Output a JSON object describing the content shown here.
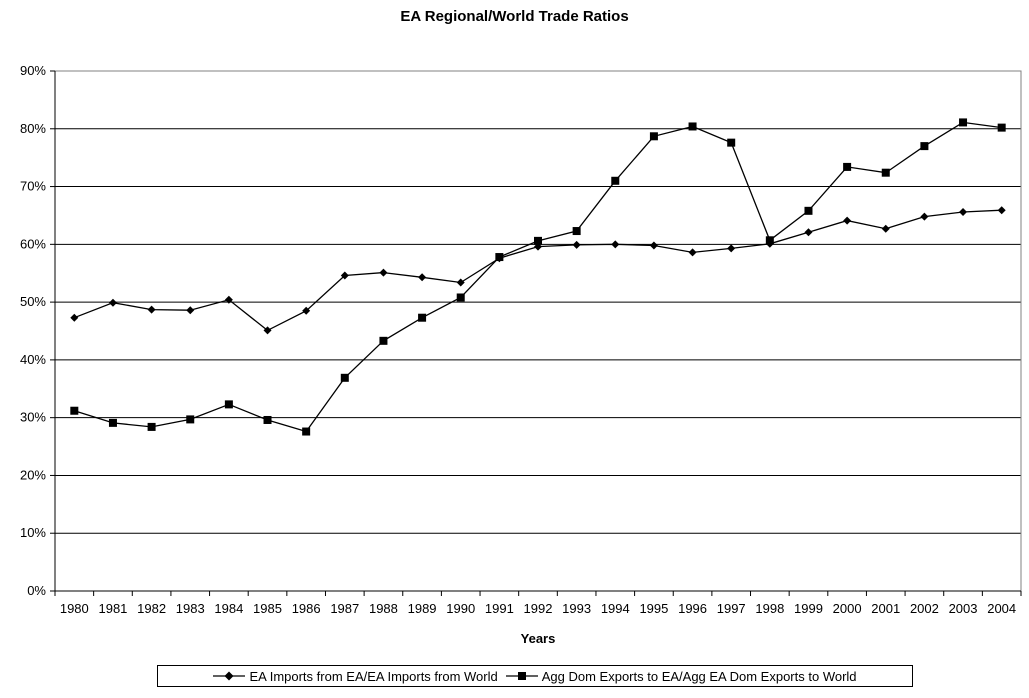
{
  "chart_data": {
    "type": "line",
    "title": "EA Regional/World Trade Ratios",
    "xlabel": "Years",
    "ylabel": "",
    "ylim": [
      0,
      90
    ],
    "yticks": [
      "0%",
      "10%",
      "20%",
      "30%",
      "40%",
      "50%",
      "60%",
      "70%",
      "80%",
      "90%"
    ],
    "grid": "horizontal",
    "legend_position": "bottom",
    "categories": [
      "1980",
      "1981",
      "1982",
      "1983",
      "1984",
      "1985",
      "1986",
      "1987",
      "1988",
      "1989",
      "1990",
      "1991",
      "1992",
      "1993",
      "1994",
      "1995",
      "1996",
      "1997",
      "1998",
      "1999",
      "2000",
      "2001",
      "2002",
      "2003",
      "2004"
    ],
    "series": [
      {
        "name": "EA Imports from EA/EA Imports from World",
        "marker": "diamond",
        "color": "#000000",
        "values": [
          47.3,
          49.9,
          48.7,
          48.6,
          50.4,
          45.1,
          48.5,
          54.6,
          55.1,
          54.3,
          53.4,
          57.6,
          59.6,
          59.9,
          60.0,
          59.8,
          58.6,
          59.3,
          60.1,
          62.1,
          64.1,
          62.7,
          64.8,
          65.6,
          65.9
        ]
      },
      {
        "name": "Agg Dom Exports to EA/Agg EA Dom Exports to World",
        "marker": "square",
        "color": "#000000",
        "values": [
          31.2,
          29.1,
          28.4,
          29.7,
          32.3,
          29.6,
          27.6,
          36.9,
          43.3,
          47.3,
          50.8,
          57.8,
          60.6,
          62.3,
          71.0,
          78.7,
          80.4,
          77.6,
          60.7,
          65.8,
          73.4,
          72.4,
          77.0,
          81.1,
          80.2
        ]
      }
    ]
  }
}
